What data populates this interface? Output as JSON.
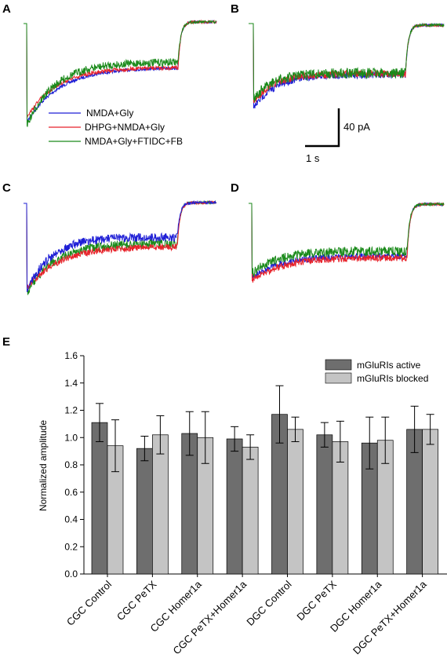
{
  "figure": {
    "panel_labels": [
      "A",
      "B",
      "C",
      "D",
      "E"
    ],
    "traces_legend": [
      {
        "label": "NMDA+Gly",
        "color": "#1f1fd6"
      },
      {
        "label": "DHPG+NMDA+Gly",
        "color": "#e8222a"
      },
      {
        "label": "NMDA+Gly+FTIDC+FB",
        "color": "#1a8a1a"
      }
    ],
    "scale_bar": {
      "amplitude_label": "40 pA",
      "time_label": "1 s"
    }
  },
  "chart_data": {
    "type": "bar",
    "panel": "E",
    "title": "",
    "xlabel": "",
    "ylabel": "Normalized amplitude",
    "ylim": [
      0,
      1.6
    ],
    "yticks": [
      "0.0",
      "0.2",
      "0.4",
      "0.6",
      "0.8",
      "1.0",
      "1.2",
      "1.4",
      "1.6"
    ],
    "grid": false,
    "legend_position": "top-right",
    "categories": [
      "CGC Control",
      "CGC PeTX",
      "CGC Homer1a",
      "CGC PeTX+Homer1a",
      "DGC Control",
      "DGC PeTX",
      "DGC Homer1a",
      "DGC PeTX+Homer1a"
    ],
    "series": [
      {
        "name": "mGluRIs active",
        "color": "#6e6e6e",
        "values": [
          1.11,
          0.92,
          1.03,
          0.99,
          1.17,
          1.02,
          0.96,
          1.06
        ],
        "errors": [
          0.14,
          0.09,
          0.16,
          0.09,
          0.21,
          0.09,
          0.19,
          0.17
        ]
      },
      {
        "name": "mGluRIs blocked",
        "color": "#c4c4c4",
        "values": [
          0.94,
          1.02,
          1.0,
          0.93,
          1.06,
          0.97,
          0.98,
          1.06
        ],
        "errors": [
          0.19,
          0.14,
          0.19,
          0.09,
          0.09,
          0.15,
          0.17,
          0.11
        ]
      }
    ]
  }
}
